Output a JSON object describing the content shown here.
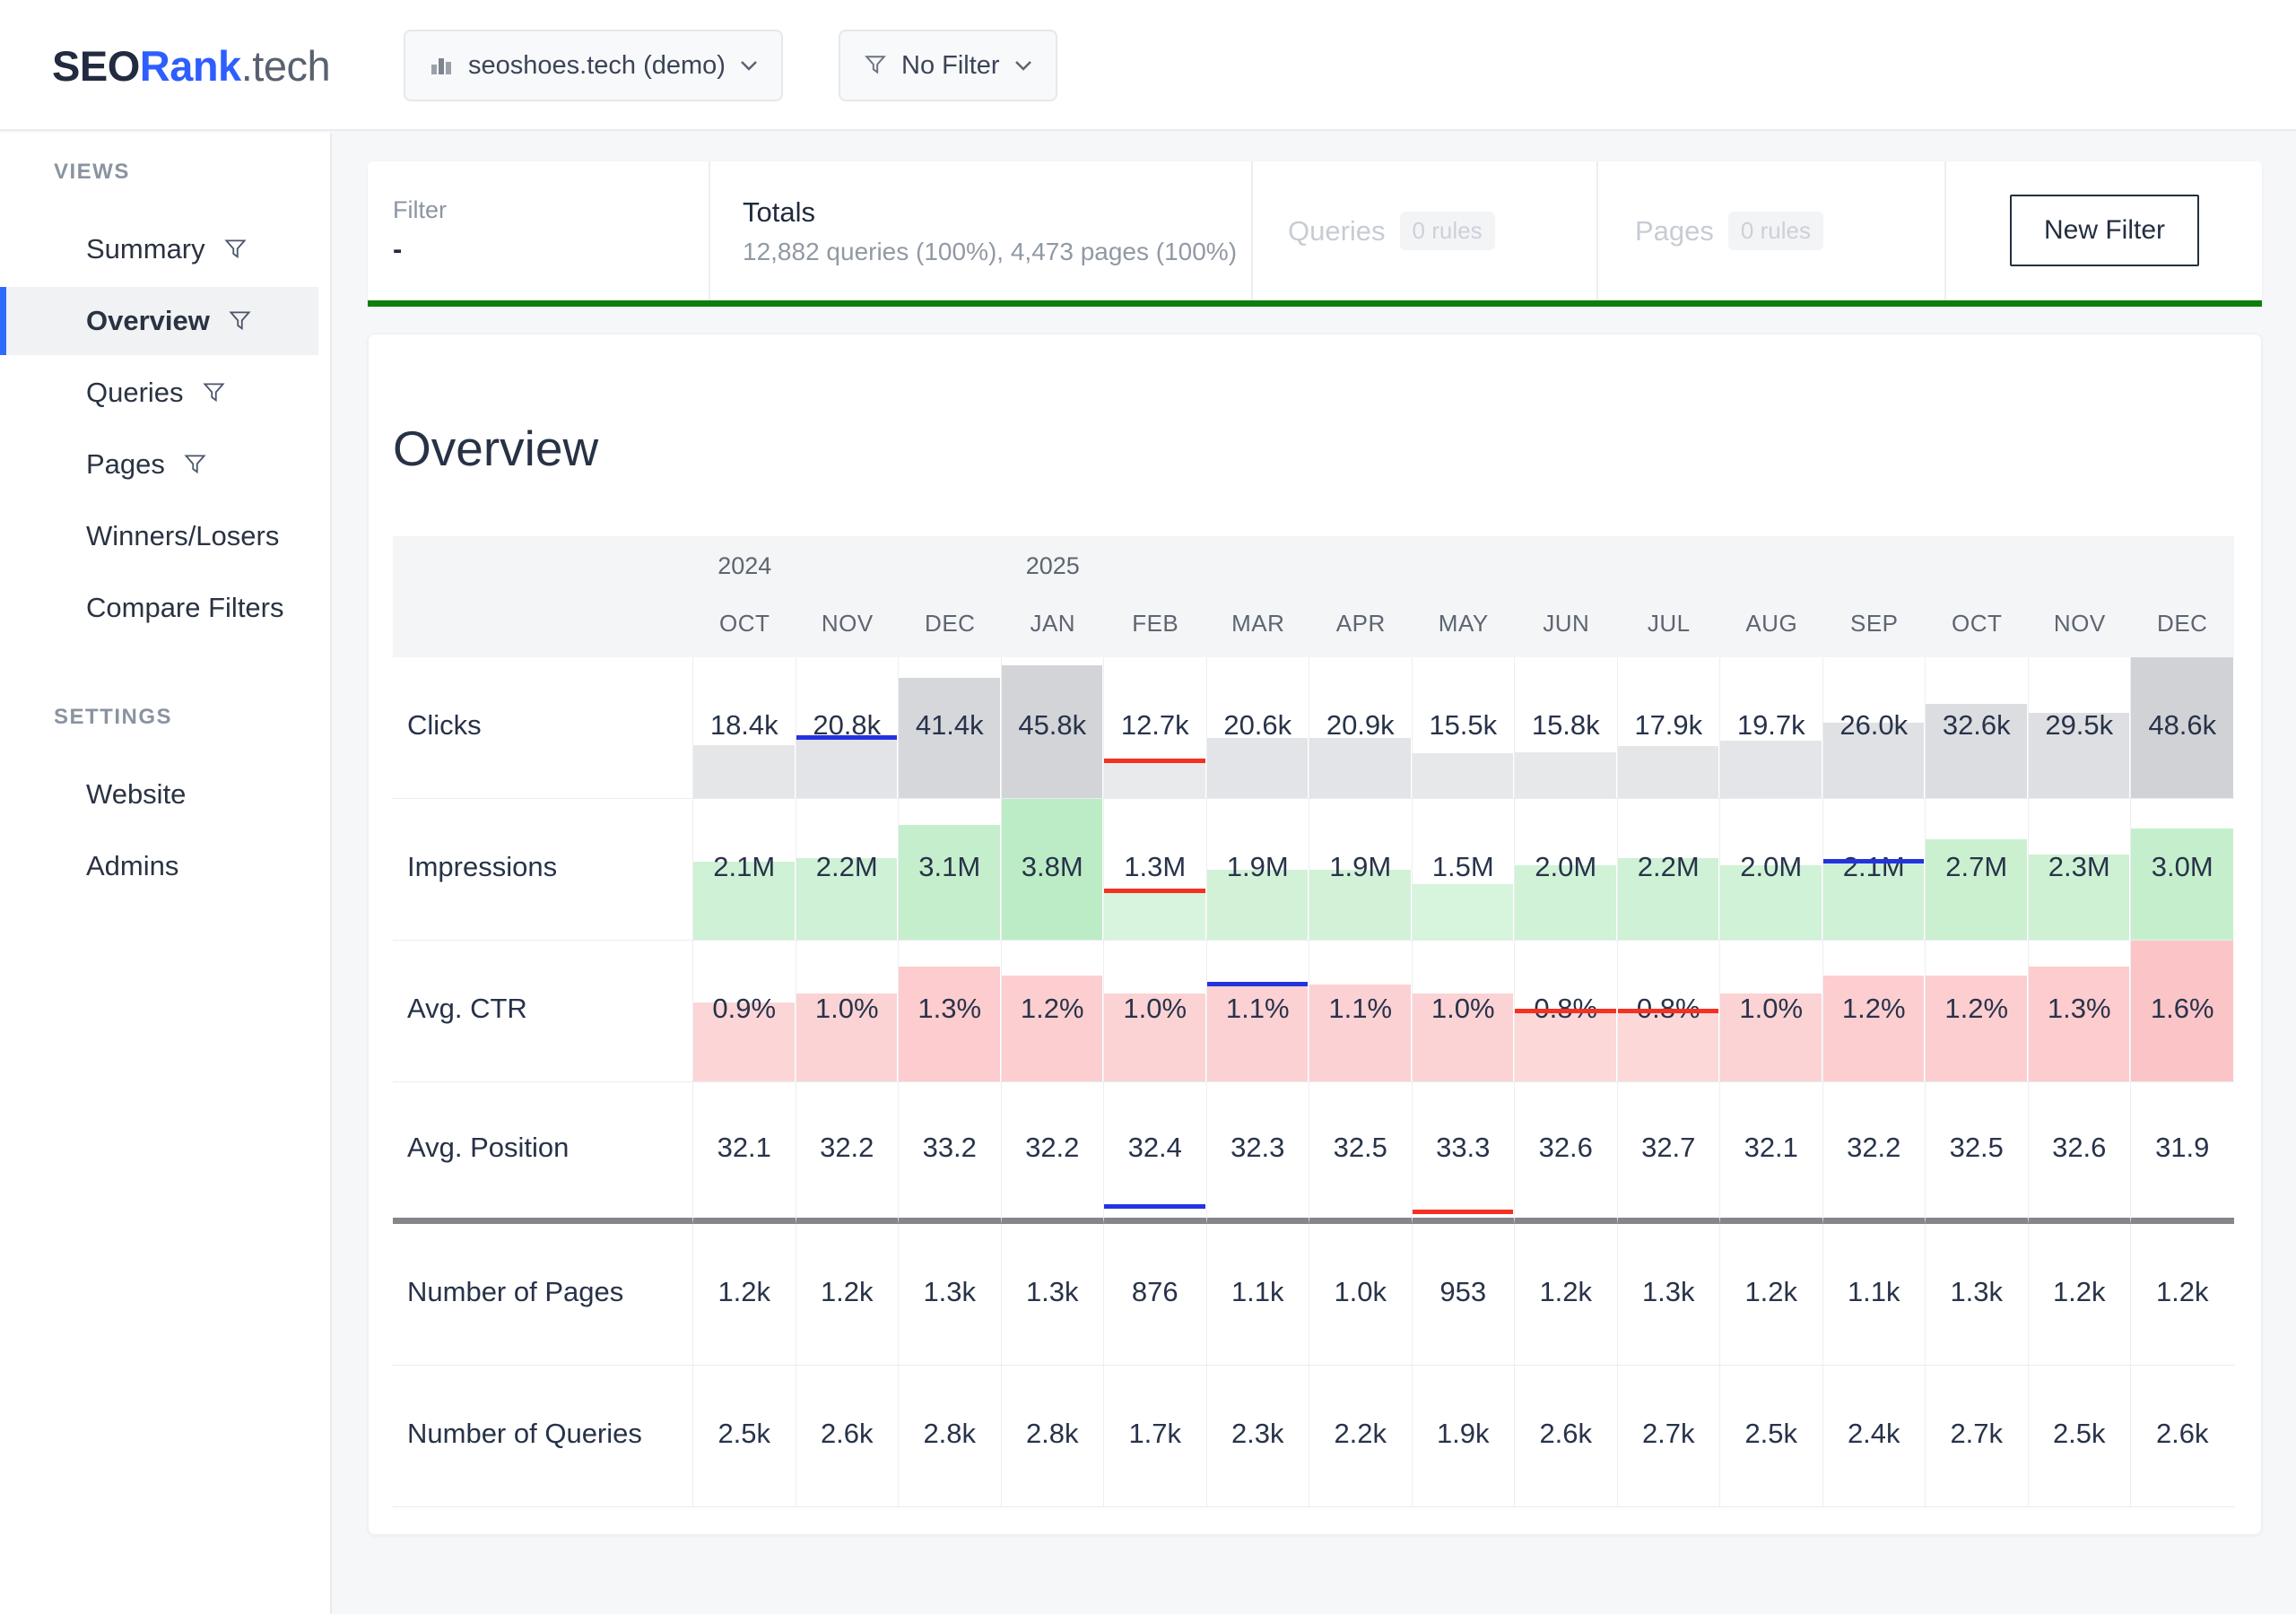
{
  "brand": {
    "seo": "SEO",
    "rank": "Rank",
    "tld": ".tech"
  },
  "topbar": {
    "site_selector": {
      "label": "seoshoes.tech (demo)",
      "icon": "chart-bars-icon"
    },
    "filter_selector": {
      "label": "No Filter",
      "icon": "funnel-icon"
    }
  },
  "sidebar": {
    "views_label": "VIEWS",
    "views": [
      {
        "label": "Summary",
        "filter": true,
        "active": false
      },
      {
        "label": "Overview",
        "filter": true,
        "active": true
      },
      {
        "label": "Queries",
        "filter": true,
        "active": false
      },
      {
        "label": "Pages",
        "filter": true,
        "active": false
      },
      {
        "label": "Winners/Losers",
        "filter": false,
        "active": false
      },
      {
        "label": "Compare Filters",
        "filter": false,
        "active": false
      }
    ],
    "settings_label": "SETTINGS",
    "settings": [
      {
        "label": "Website"
      },
      {
        "label": "Admins"
      }
    ]
  },
  "filter_bar": {
    "filter_label": "Filter",
    "filter_value": "-",
    "totals_label": "Totals",
    "totals_value": "12,882 queries (100%), 4,473 pages (100%)",
    "queries_label": "Queries",
    "queries_badge": "0 rules",
    "pages_label": "Pages",
    "pages_badge": "0 rules",
    "new_filter_button": "New Filter"
  },
  "page_title": "Overview",
  "table": {
    "year_markers": [
      {
        "label": "2024",
        "col": 0
      },
      {
        "label": "2025",
        "col": 3
      }
    ],
    "months": [
      "OCT",
      "NOV",
      "DEC",
      "JAN",
      "FEB",
      "MAR",
      "APR",
      "MAY",
      "JUN",
      "JUL",
      "AUG",
      "SEP",
      "OCT",
      "NOV",
      "DEC"
    ],
    "rows": [
      {
        "label": "Clicks",
        "values": [
          "18.4k",
          "20.8k",
          "41.4k",
          "45.8k",
          "12.7k",
          "20.6k",
          "20.9k",
          "15.5k",
          "15.8k",
          "17.9k",
          "19.7k",
          "26.0k",
          "32.6k",
          "29.5k",
          "48.6k"
        ],
        "numeric": [
          18.4,
          20.8,
          41.4,
          45.8,
          12.7,
          20.6,
          20.9,
          15.5,
          15.8,
          17.9,
          19.7,
          26.0,
          32.6,
          29.5,
          48.6
        ],
        "max": 48.6,
        "bar": {
          "rgb": "151,156,165",
          "alpha_min": 0.13,
          "alpha_span": 0.32
        },
        "annotations": [
          {
            "col": 1,
            "type": "median",
            "color": "#2433e0",
            "bottom_pct": null
          },
          {
            "col": 4,
            "type": "worst",
            "color": "#f43122",
            "bottom_pct": null
          }
        ]
      },
      {
        "label": "Impressions",
        "values": [
          "2.1M",
          "2.2M",
          "3.1M",
          "3.8M",
          "1.3M",
          "1.9M",
          "1.9M",
          "1.5M",
          "2.0M",
          "2.2M",
          "2.0M",
          "2.1M",
          "2.7M",
          "2.3M",
          "3.0M"
        ],
        "numeric": [
          2.1,
          2.2,
          3.1,
          3.8,
          1.3,
          1.9,
          1.9,
          1.5,
          2.0,
          2.2,
          2.0,
          2.1,
          2.7,
          2.3,
          3.0
        ],
        "max": 3.8,
        "bar": {
          "rgb": "110,214,128",
          "alpha_min": 0.16,
          "alpha_span": 0.3
        },
        "annotations": [
          {
            "col": 4,
            "type": "worst",
            "color": "#f43122",
            "bottom_pct": null
          },
          {
            "col": 11,
            "type": "median",
            "color": "#2433e0",
            "bottom_pct": null
          }
        ]
      },
      {
        "label": "Avg. CTR",
        "values": [
          "0.9%",
          "1.0%",
          "1.3%",
          "1.2%",
          "1.0%",
          "1.1%",
          "1.1%",
          "1.0%",
          "0.8%",
          "0.8%",
          "1.0%",
          "1.2%",
          "1.2%",
          "1.3%",
          "1.6%"
        ],
        "numeric": [
          0.9,
          1.0,
          1.3,
          1.2,
          1.0,
          1.1,
          1.1,
          1.0,
          0.8,
          0.8,
          1.0,
          1.2,
          1.2,
          1.3,
          1.6
        ],
        "max": 1.6,
        "bar": {
          "rgb": "246,120,125",
          "alpha_min": 0.15,
          "alpha_span": 0.28
        },
        "annotations": [
          {
            "col": 5,
            "type": "median",
            "color": "#2433e0",
            "bottom_pct": null
          },
          {
            "col": 8,
            "type": "worst",
            "color": "#f43122",
            "bottom_pct": null
          },
          {
            "col": 9,
            "type": "worst",
            "color": "#f43122",
            "bottom_pct": null
          }
        ]
      },
      {
        "label": "Avg. Position",
        "values": [
          "32.1",
          "32.2",
          "33.2",
          "32.2",
          "32.4",
          "32.3",
          "32.5",
          "33.3",
          "32.6",
          "32.7",
          "32.1",
          "32.2",
          "32.5",
          "32.6",
          "31.9"
        ],
        "numeric": [
          32.1,
          32.2,
          33.2,
          32.2,
          32.4,
          32.3,
          32.5,
          33.3,
          32.6,
          32.7,
          32.1,
          32.2,
          32.5,
          32.6,
          31.9
        ],
        "max": 33.3,
        "bar": null,
        "heavy_bottom_border": true,
        "annotations": [
          {
            "col": 4,
            "type": "median",
            "color": "#2433e0",
            "bottom_pct": 8
          },
          {
            "col": 7,
            "type": "worst",
            "color": "#f43122",
            "bottom_pct": 4
          }
        ]
      },
      {
        "label": "Number of Pages",
        "values": [
          "1.2k",
          "1.2k",
          "1.3k",
          "1.3k",
          "876",
          "1.1k",
          "1.0k",
          "953",
          "1.2k",
          "1.3k",
          "1.2k",
          "1.1k",
          "1.3k",
          "1.2k",
          "1.2k"
        ],
        "numeric": [
          1200,
          1200,
          1300,
          1300,
          876,
          1100,
          1000,
          953,
          1200,
          1300,
          1200,
          1100,
          1300,
          1200,
          1200
        ],
        "max": 1300,
        "bar": null,
        "annotations": []
      },
      {
        "label": "Number of Queries",
        "values": [
          "2.5k",
          "2.6k",
          "2.8k",
          "2.8k",
          "1.7k",
          "2.3k",
          "2.2k",
          "1.9k",
          "2.6k",
          "2.7k",
          "2.5k",
          "2.4k",
          "2.7k",
          "2.5k",
          "2.6k"
        ],
        "numeric": [
          2500,
          2600,
          2800,
          2800,
          1700,
          2300,
          2200,
          1900,
          2600,
          2700,
          2500,
          2400,
          2700,
          2500,
          2600
        ],
        "max": 2800,
        "bar": null,
        "annotations": []
      }
    ]
  },
  "colors": {
    "accent_blue": "#2e5eff",
    "green_rule": "#0e7e0e",
    "marker_median_blue": "#2433e0",
    "marker_worst_red": "#f43122",
    "heavy_divider": "#85868b"
  }
}
